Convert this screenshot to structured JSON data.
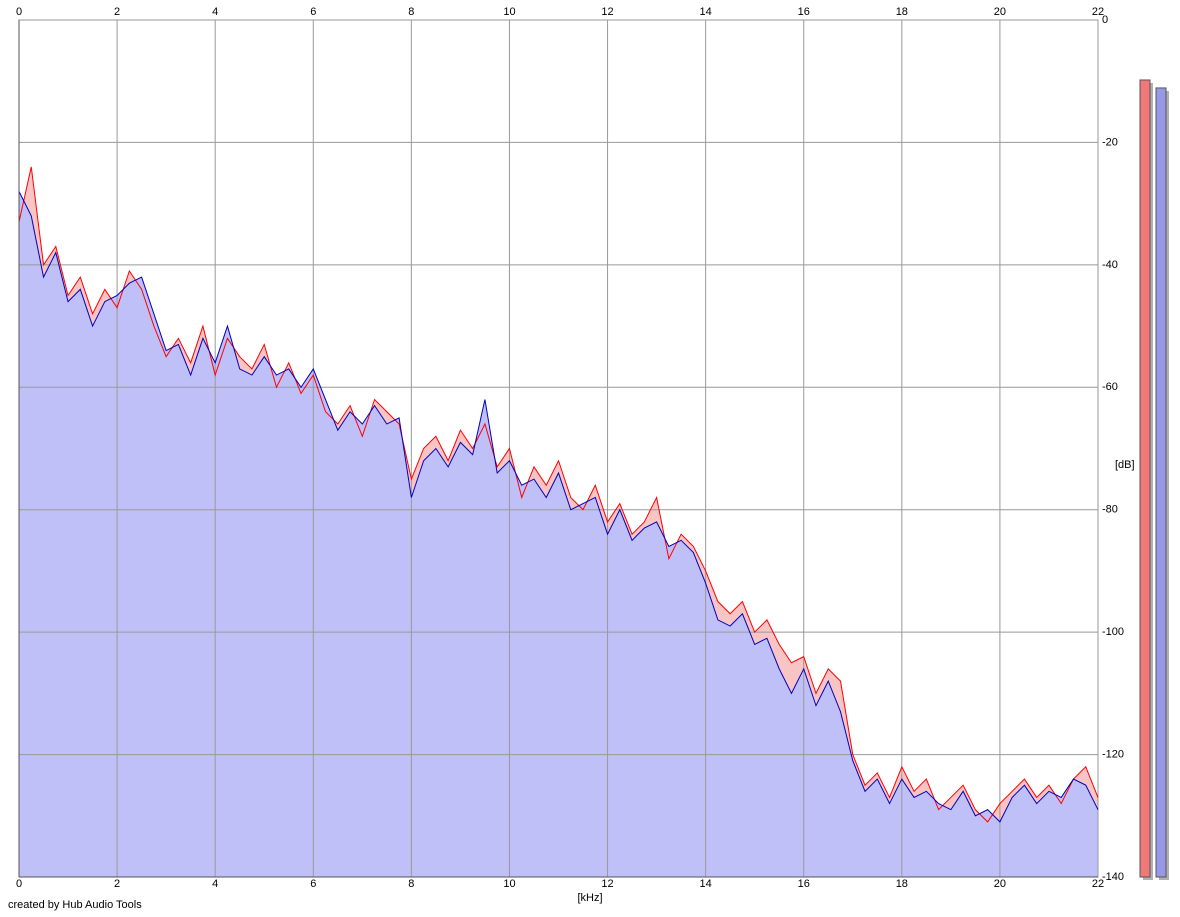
{
  "chart_data": {
    "type": "area",
    "x_label": "[kHz]",
    "y_label": "[dB]",
    "credit": "created by Hub Audio Tools",
    "xlim": [
      0,
      22
    ],
    "xticks": [
      0,
      2,
      4,
      6,
      8,
      10,
      12,
      14,
      16,
      18,
      20,
      22
    ],
    "ylim": [
      -140,
      0
    ],
    "yticks": [
      0,
      -20,
      -40,
      -60,
      -80,
      -100,
      -120,
      -140
    ],
    "grid": true,
    "x": [
      0,
      0.25,
      0.5,
      0.75,
      1,
      1.25,
      1.5,
      1.75,
      2,
      2.25,
      2.5,
      2.75,
      3,
      3.25,
      3.5,
      3.75,
      4,
      4.25,
      4.5,
      4.75,
      5,
      5.25,
      5.5,
      5.75,
      6,
      6.25,
      6.5,
      6.75,
      7,
      7.25,
      7.5,
      7.75,
      8,
      8.25,
      8.5,
      8.75,
      9,
      9.25,
      9.5,
      9.75,
      10,
      10.25,
      10.5,
      10.75,
      11,
      11.25,
      11.5,
      11.75,
      12,
      12.25,
      12.5,
      12.75,
      13,
      13.25,
      13.5,
      13.75,
      14,
      14.25,
      14.5,
      14.75,
      15,
      15.25,
      15.5,
      15.75,
      16,
      16.25,
      16.5,
      16.75,
      17,
      17.25,
      17.5,
      17.75,
      18,
      18.25,
      18.5,
      18.75,
      19,
      19.25,
      19.5,
      19.75,
      20,
      20.25,
      20.5,
      20.75,
      21,
      21.25,
      21.5,
      21.75,
      22
    ],
    "series": [
      {
        "color": "#ff0000",
        "fill": "#f8c4c4",
        "values": [
          -33,
          -24,
          -40,
          -37,
          -45,
          -42,
          -48,
          -44,
          -47,
          -41,
          -44,
          -50,
          -55,
          -52,
          -56,
          -50,
          -58,
          -52,
          -55,
          -57,
          -53,
          -60,
          -56,
          -61,
          -58,
          -64,
          -66,
          -63,
          -68,
          -62,
          -64,
          -66,
          -75,
          -70,
          -68,
          -72,
          -67,
          -70,
          -66,
          -73,
          -70,
          -78,
          -73,
          -76,
          -72,
          -78,
          -80,
          -76,
          -82,
          -79,
          -84,
          -82,
          -78,
          -88,
          -84,
          -86,
          -90,
          -95,
          -97,
          -95,
          -100,
          -98,
          -102,
          -105,
          -104,
          -110,
          -106,
          -108,
          -120,
          -125,
          -123,
          -127,
          -122,
          -126,
          -124,
          -129,
          -127,
          -125,
          -129,
          -131,
          -128,
          -126,
          -124,
          -127,
          -125,
          -128,
          -124,
          -122,
          -127
        ]
      },
      {
        "color": "#0000c0",
        "fill": "#c0c0f8",
        "values": [
          -28,
          -32,
          -42,
          -38,
          -46,
          -44,
          -50,
          -46,
          -45,
          -43,
          -42,
          -48,
          -54,
          -53,
          -58,
          -52,
          -56,
          -50,
          -57,
          -58,
          -55,
          -58,
          -57,
          -60,
          -57,
          -62,
          -67,
          -64,
          -66,
          -63,
          -66,
          -65,
          -78,
          -72,
          -70,
          -73,
          -69,
          -71,
          -62,
          -74,
          -72,
          -76,
          -75,
          -78,
          -74,
          -80,
          -79,
          -78,
          -84,
          -80,
          -85,
          -83,
          -82,
          -86,
          -85,
          -87,
          -92,
          -98,
          -99,
          -97,
          -102,
          -101,
          -106,
          -110,
          -106,
          -112,
          -108,
          -113,
          -121,
          -126,
          -124,
          -128,
          -124,
          -127,
          -126,
          -128,
          -129,
          -126,
          -130,
          -129,
          -131,
          -127,
          -125,
          -128,
          -126,
          -127,
          -124,
          -125,
          -129
        ]
      }
    ],
    "levels": [
      {
        "color": "#f07878",
        "value": -9.8
      },
      {
        "color": "#9898e8",
        "value": -11.1
      }
    ]
  }
}
